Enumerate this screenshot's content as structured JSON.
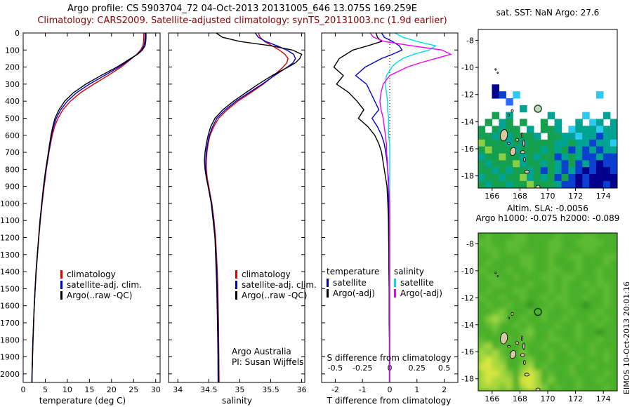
{
  "header": {
    "title_line1": "Argo profile: CS 5903704_72 04-Oct-2013 20131005_646 13.075S 169.259E",
    "title_line2": "Climatology: CARS2009. Satellite-adjusted climatology: synTS_20131003.nc (1.9d earlier)",
    "title2_color": "#8b0000"
  },
  "side_text": "EIMOS 10-Oct-2013 20:01:16",
  "chart_data": [
    {
      "type": "line",
      "name": "temperature-profile",
      "xlabel": "temperature (deg C)",
      "xlim": [
        0,
        31
      ],
      "xticks": [
        0,
        5,
        10,
        15,
        20,
        25,
        30
      ],
      "depth_lim": [
        0,
        2050
      ],
      "depth_ticks": [
        0,
        100,
        200,
        300,
        400,
        500,
        600,
        700,
        800,
        900,
        1000,
        1100,
        1200,
        1300,
        1400,
        1500,
        1600,
        1700,
        1800,
        1900,
        2000
      ],
      "depths": [
        0,
        25,
        50,
        75,
        100,
        125,
        150,
        175,
        200,
        250,
        300,
        350,
        400,
        450,
        500,
        550,
        600,
        650,
        700,
        750,
        800,
        850,
        900,
        1000,
        1100,
        1200,
        1300,
        1400,
        1500,
        1600,
        1700,
        1800,
        1900,
        2000,
        2050
      ],
      "series": [
        {
          "name": "climatology",
          "color": "#e00000",
          "values": [
            27.3,
            27.3,
            27.25,
            27.1,
            26.6,
            25.7,
            24.6,
            23.4,
            22.2,
            19.2,
            16.0,
            13.0,
            10.7,
            9.0,
            7.9,
            7.1,
            6.6,
            6.2,
            5.85,
            5.55,
            5.25,
            5.0,
            4.75,
            4.3,
            3.9,
            3.55,
            3.25,
            2.95,
            2.73,
            2.53,
            2.38,
            2.24,
            2.13,
            2.03,
            2.0
          ]
        },
        {
          "name": "satellite-adj. clim.",
          "color": "#0000cc",
          "values": [
            27.6,
            27.6,
            27.5,
            27.35,
            26.8,
            25.8,
            24.45,
            23.1,
            21.7,
            18.4,
            15.0,
            12.1,
            10.0,
            8.5,
            7.5,
            6.85,
            6.4,
            6.1,
            5.78,
            5.48,
            5.18,
            4.92,
            4.68,
            4.25,
            3.85,
            3.52,
            3.22,
            2.92,
            2.71,
            2.51,
            2.36,
            2.22,
            2.11,
            2.01,
            1.98
          ]
        },
        {
          "name": "Argo(..raw -QC)",
          "color": "#000000",
          "values": [
            27.8,
            27.8,
            27.75,
            27.6,
            27.0,
            25.9,
            24.3,
            22.8,
            21.2,
            17.6,
            14.2,
            11.4,
            9.4,
            8.1,
            7.2,
            6.7,
            6.3,
            6.0,
            5.7,
            5.4,
            5.1,
            4.85,
            4.6,
            4.2,
            3.8,
            3.5,
            3.2,
            2.9,
            2.7,
            2.5,
            2.35,
            2.2,
            2.1,
            2.0,
            1.97
          ]
        }
      ]
    },
    {
      "type": "line",
      "name": "salinity-profile",
      "xlabel": "salinity",
      "xlim": [
        33.85,
        36.05
      ],
      "xticks": [
        34,
        34.5,
        35,
        35.5,
        36
      ],
      "depth_lim": [
        0,
        2050
      ],
      "annotation": {
        "line1": "Argo Australia",
        "line2": "PI: Susan Wijffels"
      },
      "series": [
        {
          "name": "climatology",
          "color": "#e00000",
          "values": [
            35.3,
            35.33,
            35.4,
            35.52,
            35.64,
            35.73,
            35.78,
            35.76,
            35.7,
            35.55,
            35.38,
            35.18,
            34.97,
            34.8,
            34.66,
            34.58,
            34.52,
            34.49,
            34.47,
            34.46,
            34.46,
            34.475,
            34.5,
            34.55,
            34.585,
            34.61,
            34.625,
            34.638,
            34.646,
            34.652,
            34.657,
            34.66,
            34.663,
            34.665,
            34.666
          ]
        },
        {
          "name": "satellite-adj. clim.",
          "color": "#0000cc",
          "values": [
            35.25,
            35.3,
            35.42,
            35.6,
            35.76,
            35.87,
            35.9,
            35.86,
            35.77,
            35.56,
            35.36,
            35.15,
            34.94,
            34.77,
            34.63,
            34.56,
            34.51,
            34.48,
            34.46,
            34.45,
            34.45,
            34.465,
            34.49,
            34.545,
            34.578,
            34.6,
            34.617,
            34.63,
            34.639,
            34.645,
            34.65,
            34.654,
            34.657,
            34.659,
            34.66
          ]
        },
        {
          "name": "Argo(..raw -QC)",
          "color": "#000000",
          "values": [
            34.62,
            34.72,
            35.0,
            35.5,
            35.85,
            36.0,
            35.97,
            35.9,
            35.78,
            35.52,
            35.3,
            35.1,
            34.9,
            34.73,
            34.6,
            34.53,
            34.49,
            34.46,
            34.44,
            34.43,
            34.44,
            34.46,
            34.49,
            34.54,
            34.57,
            34.6,
            34.61,
            34.62,
            34.63,
            34.635,
            34.64,
            34.645,
            34.648,
            34.65,
            34.651
          ]
        }
      ]
    },
    {
      "type": "line",
      "name": "difference-profile",
      "xlabel_t": "T difference from climatology",
      "xlabel_s": "S difference from climatology",
      "xlim_t": [
        -2.5,
        2.5
      ],
      "xticks_t": [
        -2,
        -1,
        0,
        1,
        2
      ],
      "xlim_s": [
        -0.625,
        0.625
      ],
      "xticks_s": [
        -0.5,
        -0.25,
        0,
        0.25,
        0.5
      ],
      "depth_lim": [
        0,
        2050
      ],
      "legend_groups": [
        {
          "header": "temperature",
          "entries": [
            {
              "label": "satellite",
              "color": "#0000cc"
            },
            {
              "label": "Argo(-adj)",
              "color": "#000000"
            }
          ]
        },
        {
          "header": "salinity",
          "entries": [
            {
              "label": "satellite",
              "color": "#00dde0"
            },
            {
              "label": "Argo(-adj)",
              "color": "#f000f0"
            }
          ]
        }
      ],
      "series": [
        {
          "name": "T satellite",
          "axis": "T",
          "color": "#0000cc",
          "values": [
            -0.3,
            -0.2,
            0.1,
            0.35,
            0.45,
            0.1,
            -0.3,
            -0.6,
            -0.9,
            -1.25,
            -0.85,
            -0.7,
            -0.55,
            -0.4,
            -0.65,
            -0.45,
            -0.3,
            -0.2,
            -0.15,
            -0.1,
            -0.08,
            -0.06,
            -0.05,
            -0.04,
            -0.03,
            -0.03,
            -0.02,
            -0.02,
            -0.02,
            -0.01,
            -0.01,
            -0.01,
            -0.01,
            -0.01,
            -0.01
          ]
        },
        {
          "name": "T Argo(-adj)",
          "axis": "T",
          "color": "#000000",
          "values": [
            -0.5,
            -0.45,
            -0.3,
            -0.8,
            -1.35,
            -1.6,
            -1.85,
            -1.95,
            -2.05,
            -1.7,
            -1.95,
            -1.5,
            -1.2,
            -0.95,
            -1.15,
            -0.8,
            -0.55,
            -0.4,
            -0.3,
            -0.25,
            -0.2,
            -0.15,
            -0.1,
            -0.07,
            -0.05,
            -0.04,
            -0.03,
            -0.03,
            -0.02,
            -0.02,
            -0.02,
            -0.01,
            -0.01,
            -0.01,
            -0.01
          ]
        },
        {
          "name": "S satellite",
          "axis": "S",
          "color": "#00dde0",
          "values": [
            0.05,
            0.12,
            0.25,
            0.42,
            0.36,
            0.22,
            0.12,
            0.06,
            0.02,
            -0.03,
            -0.04,
            -0.03,
            -0.02,
            -0.02,
            -0.01,
            -0.01,
            -0.01,
            0,
            0,
            0,
            0,
            0,
            0,
            0,
            0,
            0,
            0,
            0,
            0,
            0,
            0,
            0,
            0,
            0,
            0
          ]
        },
        {
          "name": "S Argo(-adj)",
          "axis": "S",
          "color": "#f000f0",
          "values": [
            -0.18,
            -0.15,
            -0.05,
            0.2,
            0.48,
            0.56,
            0.42,
            0.28,
            0.16,
            0.0,
            -0.06,
            -0.08,
            -0.09,
            -0.08,
            -0.06,
            -0.05,
            -0.04,
            -0.03,
            -0.03,
            -0.02,
            -0.02,
            -0.01,
            -0.01,
            0,
            0,
            0,
            0,
            0,
            0,
            0,
            0,
            0,
            0,
            0,
            0
          ]
        }
      ]
    },
    {
      "type": "heatmap",
      "name": "sst-map",
      "title": "sat. SST: NaN Argo: 27.6",
      "xlim": [
        165,
        175
      ],
      "ylim": [
        -7.2,
        -18.9
      ],
      "xticks": [
        166,
        168,
        170,
        172,
        174
      ],
      "yticks": [
        -8,
        -10,
        -12,
        -14,
        -16,
        -18
      ],
      "palette": {
        "n": "#00008c",
        "b": "#0a3fd0",
        "B": "#2b6bff",
        "c": "#2ec9f0",
        "C": "#8ae6ff",
        "t": "#00a392",
        "g": "#15a050",
        "G": "#3fbf5f",
        "l": "#8ccf45"
      },
      "grid": [
        "....................",
        "....................",
        "....................",
        "....................",
        "....................",
        "....................",
        "....................",
        "....................",
        "..n.................",
        "..nb.c...........c..",
        "....B...............",
        "......t.............",
        "..g.t.....t....c..t.",
        ".g.tg.g..g.t..t.ct.t",
        "g.gtgg.t.ggt.ctttctt",
        "ggtgtgggt.ggttcttbtt",
        "lgggtgtggggttgttbttc",
        "glgggtgggtgtgbtbtbtt",
        "tgglggtgtggbtgtbbtbb",
        "gtgggltggtgtbgbtbnbb",
        "ggtgtggtgbgtbtbnbnnb",
        "tggtggltgtgbgbnbnnnn",
        "gtggtgglgggtbbnbnnbn"
      ],
      "islands": [
        [
          166.25,
          -10.15,
          0.1,
          0.12,
          0
        ],
        [
          166.4,
          -10.4,
          0.08,
          0.1,
          0
        ],
        [
          167.45,
          -13.2,
          0.16,
          0.22,
          0
        ],
        [
          167.2,
          -13.5,
          0.1,
          0.14,
          0
        ],
        [
          166.85,
          -15.0,
          0.5,
          0.85,
          8
        ],
        [
          167.2,
          -15.6,
          0.2,
          0.12,
          0
        ],
        [
          167.8,
          -15.35,
          0.24,
          0.2,
          0
        ],
        [
          168.15,
          -15.0,
          0.1,
          0.35,
          0
        ],
        [
          168.28,
          -15.6,
          0.13,
          0.5,
          0
        ],
        [
          167.5,
          -16.2,
          0.4,
          0.6,
          15
        ],
        [
          168.2,
          -16.25,
          0.32,
          0.22,
          0
        ],
        [
          168.33,
          -16.8,
          0.13,
          0.3,
          0
        ],
        [
          168.5,
          -17.7,
          0.34,
          0.22,
          0
        ],
        [
          169.3,
          -18.82,
          0.3,
          0.26,
          0
        ]
      ],
      "marker": {
        "lon": 169.3,
        "lat": -13.05,
        "color": "#1a521a"
      }
    },
    {
      "type": "heatmap",
      "name": "sla-map",
      "title_line1": "Altim. SLA: -0.0056",
      "title_line2": "Argo h1000: -0.075 h2000: -0.089",
      "smooth": true,
      "base_color": "#49af2b",
      "xlim": [
        165,
        175
      ],
      "ylim": [
        -7.2,
        -18.9
      ],
      "xticks": [
        166,
        168,
        170,
        172,
        174
      ],
      "yticks": [
        -8,
        -10,
        -12,
        -14,
        -16,
        -18
      ],
      "palette": {
        "d": "#2e941f",
        "g": "#49af2b",
        "h": "#5bbb33",
        "l": "#7cc93b",
        "y": "#a8d83e",
        "Y": "#d8e53f"
      },
      "grid": [
        "ghggghhgggghggghhggg",
        "hhgghhhggghhgghhhhgg",
        "ghhghhgggghhggghhggg",
        "gghggghhgghgghhggghh",
        "ghgggghhgghggghggghg",
        "hggghgghgghhgghgghgg",
        "ghhgghggghhghhggghgg",
        "gghhggghgghghgghghhg",
        "ghggghhggghghggghghg",
        "hgghgghgghghhgghgghg",
        "ghgghggdgghghggdgghg",
        "gghlggghghggghggghgg",
        "glylgghgghgghggghghg",
        "ghlgghghggghgghgghgg",
        "gghggghlgghggghggdgg",
        "hggghghhgghhgghgghgg",
        "lyghgghgghgghggghggg",
        "ylyhgglggghgghgghghg",
        "yYylgghlgghggghggghg",
        "YYyygglyghggghgghggg",
        "yYYylgyYyghgghgggghg",
        "yYyyygYYyglggghgghgg",
        "yyylygyYylghgghggghg"
      ],
      "marker": {
        "lon": 169.3,
        "lat": -13.05,
        "color": "#143c14"
      }
    }
  ]
}
